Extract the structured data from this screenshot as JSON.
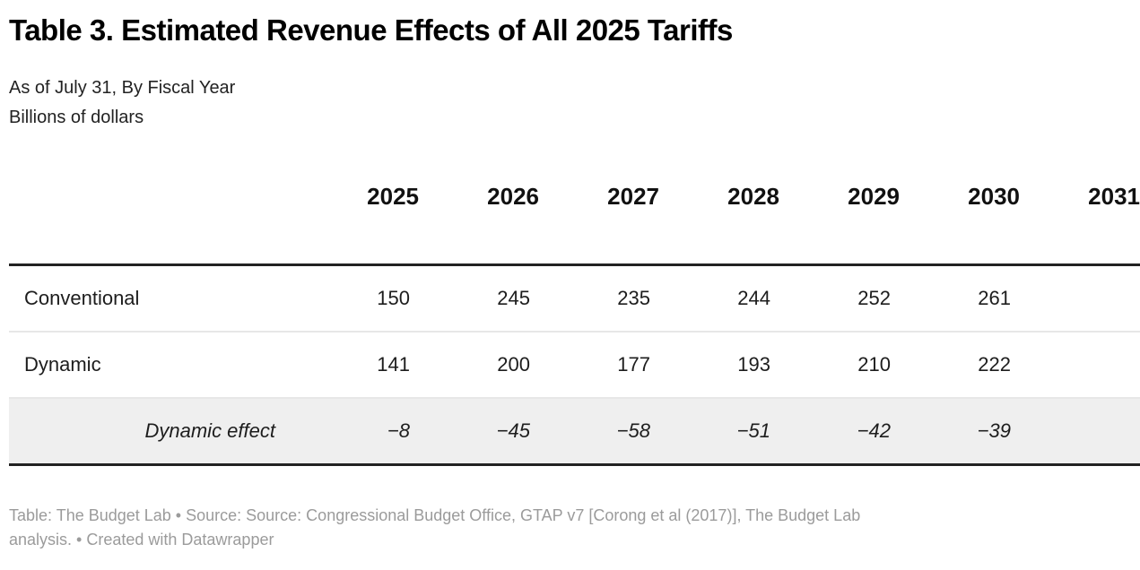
{
  "colors": {
    "title_color": "#000000",
    "text_primary": "#1d1d1d",
    "subtitle_color": "#222222",
    "row_highlight": "#efefef",
    "border_dark": "#222222",
    "separator": "#e7e7e7",
    "footer_text": "#9b9b9b",
    "background": "#ffffff"
  },
  "header": {
    "title": "Table 3. Estimated Revenue Effects of All 2025 Tariffs",
    "subtitle": "As of July 31, By Fiscal Year",
    "units": "Billions of dollars"
  },
  "table": {
    "columns": [
      "2025",
      "2026",
      "2027",
      "2028",
      "2029",
      "2030",
      "2031"
    ],
    "clipped_last_column": true,
    "rows": [
      {
        "label": "Conventional",
        "style": "regular",
        "values": [
          "150",
          "245",
          "235",
          "244",
          "252",
          "261",
          ""
        ]
      },
      {
        "label": "Dynamic",
        "style": "regular",
        "values": [
          "141",
          "200",
          "177",
          "193",
          "210",
          "222",
          ""
        ]
      },
      {
        "label": "Dynamic effect",
        "style": "highlight",
        "values": [
          "−8",
          "−45",
          "−58",
          "−51",
          "−42",
          "−39",
          ""
        ]
      }
    ]
  },
  "footer": {
    "line1": "Table: The Budget Lab • Source: Source: Congressional Budget Office, GTAP v7 [Corong et al (2017)], The Budget Lab",
    "line2_prefix": "analysis. •",
    "credit": "Created with Datawrapper"
  },
  "chart_data": {
    "type": "table",
    "title": "Table 3. Estimated Revenue Effects of All 2025 Tariffs",
    "subtitle": "As of July 31, By Fiscal Year",
    "units": "Billions of dollars",
    "categories": [
      "2025",
      "2026",
      "2027",
      "2028",
      "2029",
      "2030"
    ],
    "series": [
      {
        "name": "Conventional",
        "values": [
          150,
          245,
          235,
          244,
          252,
          261
        ]
      },
      {
        "name": "Dynamic",
        "values": [
          141,
          200,
          177,
          193,
          210,
          222
        ]
      },
      {
        "name": "Dynamic effect",
        "values": [
          -8,
          -45,
          -58,
          -51,
          -42,
          -39
        ]
      }
    ],
    "layout_hints": {
      "highlighted_row": "Dynamic effect",
      "next_column_partially_visible": "2031",
      "grid": "horizontal rules only"
    }
  }
}
